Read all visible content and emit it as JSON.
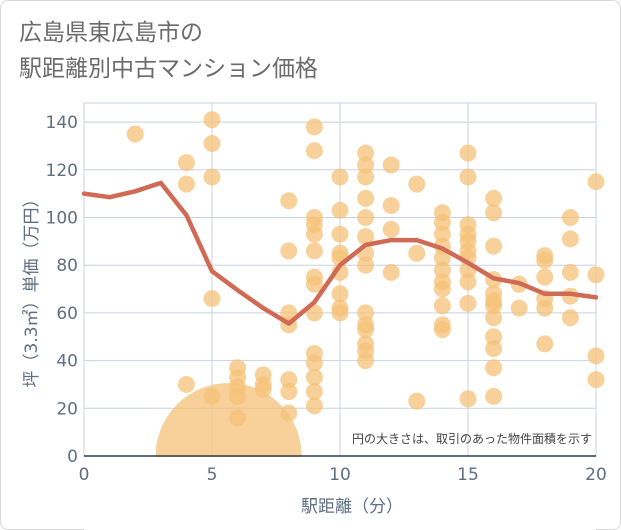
{
  "title": "広島県東広島市の\n駅距離別中古マンション価格",
  "chart_data": {
    "type": "scatter",
    "xlabel": "駅距離（分）",
    "ylabel": "坪（3.3㎡）単価（万円）",
    "xlim": [
      0,
      20
    ],
    "ylim": [
      0,
      148
    ],
    "xticks": [
      0,
      5,
      10,
      15,
      20
    ],
    "yticks": [
      0,
      20,
      40,
      60,
      80,
      100,
      120,
      140
    ],
    "grid": true,
    "note": "円の大きさは、取引のあった物件面積を示す",
    "colors": {
      "bubble": "#f5c178",
      "line": "#d06a55",
      "grid": "#c8d2e0"
    },
    "points": [
      [
        2,
        135
      ],
      [
        4,
        123
      ],
      [
        4,
        114
      ],
      [
        4,
        30
      ],
      [
        5,
        141
      ],
      [
        5,
        131
      ],
      [
        5,
        117
      ],
      [
        5,
        66
      ],
      [
        5,
        25
      ],
      [
        6,
        37
      ],
      [
        6,
        33
      ],
      [
        6,
        29
      ],
      [
        6,
        25
      ],
      [
        6,
        16
      ],
      [
        7,
        34
      ],
      [
        7,
        30
      ],
      [
        7,
        28
      ],
      [
        8,
        107
      ],
      [
        8,
        86
      ],
      [
        8,
        60
      ],
      [
        8,
        55
      ],
      [
        8,
        32
      ],
      [
        8,
        27
      ],
      [
        8,
        18
      ],
      [
        9,
        138
      ],
      [
        9,
        128
      ],
      [
        9,
        100
      ],
      [
        9,
        97
      ],
      [
        9,
        93
      ],
      [
        9,
        86
      ],
      [
        9,
        75
      ],
      [
        9,
        72
      ],
      [
        9,
        60
      ],
      [
        9,
        43
      ],
      [
        9,
        39
      ],
      [
        9,
        33
      ],
      [
        9,
        27
      ],
      [
        9,
        21
      ],
      [
        10,
        117
      ],
      [
        10,
        103
      ],
      [
        10,
        93
      ],
      [
        10,
        85
      ],
      [
        10,
        83
      ],
      [
        10,
        77
      ],
      [
        10,
        68
      ],
      [
        10,
        62
      ],
      [
        10,
        60
      ],
      [
        11,
        127
      ],
      [
        11,
        122
      ],
      [
        11,
        117
      ],
      [
        11,
        108
      ],
      [
        11,
        100
      ],
      [
        11,
        92
      ],
      [
        11,
        85
      ],
      [
        11,
        80
      ],
      [
        11,
        60
      ],
      [
        11,
        55
      ],
      [
        11,
        53
      ],
      [
        11,
        47
      ],
      [
        11,
        44
      ],
      [
        11,
        40
      ],
      [
        12,
        122
      ],
      [
        12,
        105
      ],
      [
        12,
        95
      ],
      [
        12,
        77
      ],
      [
        13,
        114
      ],
      [
        13,
        85
      ],
      [
        13,
        23
      ],
      [
        14,
        102
      ],
      [
        14,
        98
      ],
      [
        14,
        93
      ],
      [
        14,
        88
      ],
      [
        14,
        83
      ],
      [
        14,
        78
      ],
      [
        14,
        73
      ],
      [
        14,
        70
      ],
      [
        14,
        63
      ],
      [
        14,
        55
      ],
      [
        14,
        53
      ],
      [
        15,
        127
      ],
      [
        15,
        117
      ],
      [
        15,
        97
      ],
      [
        15,
        93
      ],
      [
        15,
        90
      ],
      [
        15,
        86
      ],
      [
        15,
        83
      ],
      [
        15,
        78
      ],
      [
        15,
        73
      ],
      [
        15,
        64
      ],
      [
        15,
        24
      ],
      [
        16,
        108
      ],
      [
        16,
        102
      ],
      [
        16,
        88
      ],
      [
        16,
        74
      ],
      [
        16,
        68
      ],
      [
        16,
        65
      ],
      [
        16,
        63
      ],
      [
        16,
        58
      ],
      [
        16,
        50
      ],
      [
        16,
        45
      ],
      [
        16,
        37
      ],
      [
        16,
        25
      ],
      [
        17,
        72
      ],
      [
        17,
        62
      ],
      [
        18,
        84
      ],
      [
        18,
        82
      ],
      [
        18,
        75
      ],
      [
        18,
        66
      ],
      [
        18,
        62
      ],
      [
        18,
        47
      ],
      [
        19,
        100
      ],
      [
        19,
        91
      ],
      [
        19,
        77
      ],
      [
        19,
        67
      ],
      [
        19,
        58
      ],
      [
        20,
        115
      ],
      [
        20,
        76
      ],
      [
        20,
        42
      ],
      [
        20,
        32
      ]
    ],
    "big_bubble": {
      "x": 5.65,
      "y": 0,
      "r_px": 73
    },
    "line": {
      "x": [
        0,
        1,
        2,
        3,
        4,
        5,
        6,
        7,
        8,
        9,
        10,
        11,
        12,
        13,
        14,
        15,
        16,
        17,
        18,
        19,
        20
      ],
      "y": [
        110,
        108.5,
        111,
        114.5,
        101,
        77.5,
        69.5,
        62,
        55.5,
        64.5,
        80,
        88.5,
        90.5,
        90.5,
        87,
        81,
        74.5,
        72.5,
        68,
        68,
        66.5
      ]
    }
  }
}
